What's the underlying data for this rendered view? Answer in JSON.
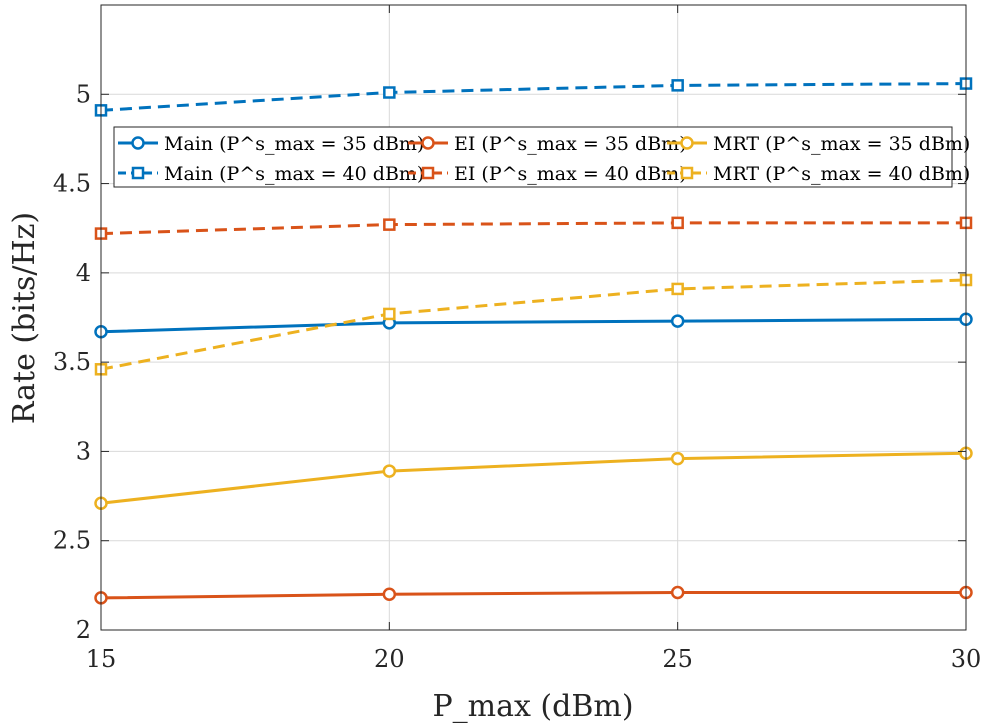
{
  "chart_data": {
    "type": "line",
    "title": "",
    "xlabel": "P_max (dBm)",
    "ylabel": "Rate (bits/Hz)",
    "x": [
      15,
      20,
      25,
      30
    ],
    "xlim": [
      15,
      30
    ],
    "ylim": [
      2,
      5.5
    ],
    "xticks": [
      "15",
      "20",
      "25",
      "30"
    ],
    "yticks": [
      "2",
      "2.5",
      "3",
      "3.5",
      "4",
      "4.5",
      "5"
    ],
    "grid": true,
    "legend_position": "top",
    "series": [
      {
        "name": "Main (P^s_max = 35 dBm)",
        "color": "#0072BD",
        "dash": "solid",
        "marker": "circle",
        "values": [
          3.67,
          3.72,
          3.73,
          3.74
        ]
      },
      {
        "name": "EI (P^s_max = 35 dBm)",
        "color": "#D95319",
        "dash": "solid",
        "marker": "circle",
        "values": [
          2.18,
          2.2,
          2.21,
          2.21
        ]
      },
      {
        "name": "MRT (P^s_max = 35 dBm)",
        "color": "#EDB120",
        "dash": "solid",
        "marker": "circle",
        "values": [
          2.71,
          2.89,
          2.96,
          2.99
        ]
      },
      {
        "name": "Main (P^s_max = 40 dBm)",
        "color": "#0072BD",
        "dash": "dashed",
        "marker": "square",
        "values": [
          4.91,
          5.01,
          5.05,
          5.06
        ]
      },
      {
        "name": "EI (P^s_max = 40 dBm)",
        "color": "#D95319",
        "dash": "dashed",
        "marker": "square",
        "values": [
          4.22,
          4.27,
          4.28,
          4.28
        ]
      },
      {
        "name": "MRT (P^s_max = 40 dBm)",
        "color": "#EDB120",
        "dash": "dashed",
        "marker": "square",
        "values": [
          3.46,
          3.77,
          3.91,
          3.96
        ]
      }
    ]
  }
}
